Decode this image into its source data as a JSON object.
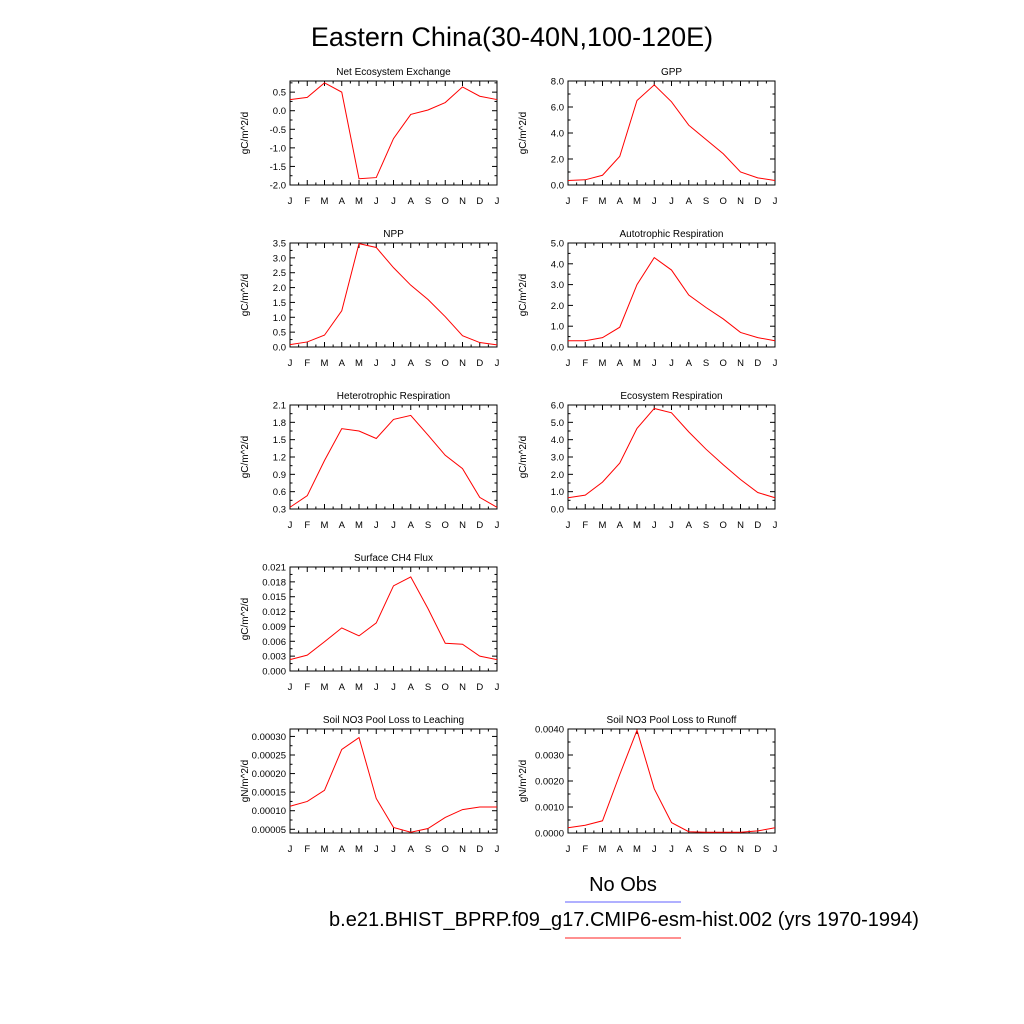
{
  "figure": {
    "title": "Eastern China(30-40N,100-120E)"
  },
  "legend": {
    "obs_label": "No Obs",
    "obs_color": "#8080ff",
    "model_label": "b.e21.BHIST_BPRP.f09_g17.CMIP6-esm-hist.002 (yrs 1970-1994)",
    "model_color": "#ff4d4d"
  },
  "chart_data": [
    {
      "type": "line",
      "title": "Net Ecosystem Exchange",
      "ylabel": "gC/m^2/d",
      "x": [
        "J",
        "F",
        "M",
        "A",
        "M",
        "J",
        "J",
        "A",
        "S",
        "O",
        "N",
        "D",
        "J"
      ],
      "ylim": [
        -2.0,
        0.8
      ],
      "yticks": [
        "0.5",
        "0.0",
        "-0.5",
        "-1.0",
        "-1.5",
        "-2.0"
      ],
      "series": [
        {
          "values": [
            0.3,
            0.36,
            0.75,
            0.5,
            -1.83,
            -1.8,
            -0.75,
            -0.1,
            0.02,
            0.22,
            0.64,
            0.39,
            0.3
          ]
        }
      ]
    },
    {
      "type": "line",
      "title": "GPP",
      "ylabel": "gC/m^2/d",
      "x": [
        "J",
        "F",
        "M",
        "A",
        "M",
        "J",
        "J",
        "A",
        "S",
        "O",
        "N",
        "D",
        "J"
      ],
      "ylim": [
        0.0,
        8.0
      ],
      "yticks": [
        "8.0",
        "6.0",
        "4.0",
        "2.0",
        "0.0"
      ],
      "series": [
        {
          "values": [
            0.35,
            0.4,
            0.75,
            2.2,
            6.5,
            7.7,
            6.4,
            4.6,
            3.5,
            2.4,
            1.0,
            0.55,
            0.35
          ]
        }
      ]
    },
    {
      "type": "line",
      "title": "NPP",
      "ylabel": "gC/m^2/d",
      "x": [
        "J",
        "F",
        "M",
        "A",
        "M",
        "J",
        "J",
        "A",
        "S",
        "O",
        "N",
        "D",
        "J"
      ],
      "ylim": [
        0.0,
        3.5
      ],
      "yticks": [
        "3.5",
        "3.0",
        "2.5",
        "2.0",
        "1.5",
        "1.0",
        "0.5",
        "0.0"
      ],
      "series": [
        {
          "values": [
            0.08,
            0.17,
            0.4,
            1.22,
            3.48,
            3.35,
            2.67,
            2.08,
            1.6,
            1.02,
            0.38,
            0.15,
            0.07
          ]
        }
      ]
    },
    {
      "type": "line",
      "title": "Autotrophic Respiration",
      "ylabel": "gC/m^2/d",
      "x": [
        "J",
        "F",
        "M",
        "A",
        "M",
        "J",
        "J",
        "A",
        "S",
        "O",
        "N",
        "D",
        "J"
      ],
      "ylim": [
        0.0,
        5.0
      ],
      "yticks": [
        "5.0",
        "4.0",
        "3.0",
        "2.0",
        "1.0",
        "0.0"
      ],
      "series": [
        {
          "values": [
            0.3,
            0.3,
            0.45,
            0.95,
            3.0,
            4.3,
            3.7,
            2.5,
            1.9,
            1.35,
            0.7,
            0.45,
            0.3
          ]
        }
      ]
    },
    {
      "type": "line",
      "title": "Heterotrophic Respiration",
      "ylabel": "gC/m^2/d",
      "x": [
        "J",
        "F",
        "M",
        "A",
        "M",
        "J",
        "J",
        "A",
        "S",
        "O",
        "N",
        "D",
        "J"
      ],
      "ylim": [
        0.3,
        2.1
      ],
      "yticks": [
        "2.1",
        "1.8",
        "1.5",
        "1.2",
        "0.9",
        "0.6",
        "0.3"
      ],
      "series": [
        {
          "values": [
            0.33,
            0.53,
            1.14,
            1.69,
            1.65,
            1.52,
            1.85,
            1.92,
            1.58,
            1.23,
            1.0,
            0.5,
            0.33
          ]
        }
      ]
    },
    {
      "type": "line",
      "title": "Ecosystem Respiration",
      "ylabel": "gC/m^2/d",
      "x": [
        "J",
        "F",
        "M",
        "A",
        "M",
        "J",
        "J",
        "A",
        "S",
        "O",
        "N",
        "D",
        "J"
      ],
      "ylim": [
        0.0,
        6.0
      ],
      "yticks": [
        "6.0",
        "5.0",
        "4.0",
        "3.0",
        "2.0",
        "1.0",
        "0.0"
      ],
      "series": [
        {
          "values": [
            0.65,
            0.8,
            1.55,
            2.65,
            4.65,
            5.8,
            5.55,
            4.45,
            3.45,
            2.55,
            1.7,
            0.95,
            0.65
          ]
        }
      ]
    },
    {
      "type": "line",
      "title": "Surface CH4 Flux",
      "ylabel": "gC/m^2/d",
      "x": [
        "J",
        "F",
        "M",
        "A",
        "M",
        "J",
        "J",
        "A",
        "S",
        "O",
        "N",
        "D",
        "J"
      ],
      "ylim": [
        0.0,
        0.021
      ],
      "yticks": [
        "0.021",
        "0.018",
        "0.015",
        "0.012",
        "0.009",
        "0.006",
        "0.003",
        "0.000"
      ],
      "series": [
        {
          "values": [
            0.0023,
            0.0032,
            0.0059,
            0.0087,
            0.0071,
            0.0097,
            0.0172,
            0.019,
            0.0126,
            0.0056,
            0.0054,
            0.003,
            0.0023
          ]
        }
      ]
    },
    {
      "type": "line",
      "title": "Soil NO3 Pool Loss to Leaching",
      "ylabel": "gN/m^2/d",
      "x": [
        "J",
        "F",
        "M",
        "A",
        "M",
        "J",
        "J",
        "A",
        "S",
        "O",
        "N",
        "D",
        "J"
      ],
      "ylim": [
        4e-05,
        0.00032
      ],
      "yticks": [
        "0.00030",
        "0.00025",
        "0.00020",
        "0.00015",
        "0.00010",
        "0.00005"
      ],
      "series": [
        {
          "values": [
            0.000112,
            0.000125,
            0.000155,
            0.000265,
            0.000297,
            0.000133,
            5.5e-05,
            4.2e-05,
            5.2e-05,
            8.2e-05,
            0.000103,
            0.00011,
            0.00011
          ]
        }
      ]
    },
    {
      "type": "line",
      "title": "Soil NO3 Pool Loss to Runoff",
      "ylabel": "gN/m^2/d",
      "x": [
        "J",
        "F",
        "M",
        "A",
        "M",
        "J",
        "J",
        "A",
        "S",
        "O",
        "N",
        "D",
        "J"
      ],
      "ylim": [
        0.0,
        0.004
      ],
      "yticks": [
        "0.0040",
        "0.0030",
        "0.0020",
        "0.0010",
        "0.0000"
      ],
      "series": [
        {
          "values": [
            0.0002,
            0.0003,
            0.00047,
            0.00225,
            0.00395,
            0.0017,
            0.0004,
            5e-05,
            3e-05,
            3e-05,
            3e-05,
            8e-05,
            0.0002
          ]
        }
      ]
    }
  ]
}
